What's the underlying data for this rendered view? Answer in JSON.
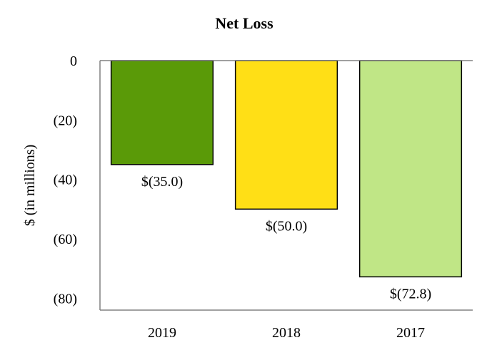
{
  "chart_data": {
    "type": "bar",
    "title": "Net Loss",
    "xlabel": "",
    "ylabel": "$ (in millions)",
    "categories": [
      "2019",
      "2018",
      "2017"
    ],
    "values": [
      -35.0,
      -50.0,
      -72.8
    ],
    "data_labels": [
      "$(35.0)",
      "$(50.0)",
      "$(72.8)"
    ],
    "colors": [
      "#5a9a08",
      "#ffdf16",
      "#c0e686"
    ],
    "ylim": [
      -84,
      0
    ],
    "yticks": [
      0,
      -20,
      -40,
      -60,
      -80
    ],
    "ytick_labels": [
      "0",
      "(20)",
      "(40)",
      "(60)",
      "(80)"
    ],
    "grid": false,
    "legend": "none"
  }
}
